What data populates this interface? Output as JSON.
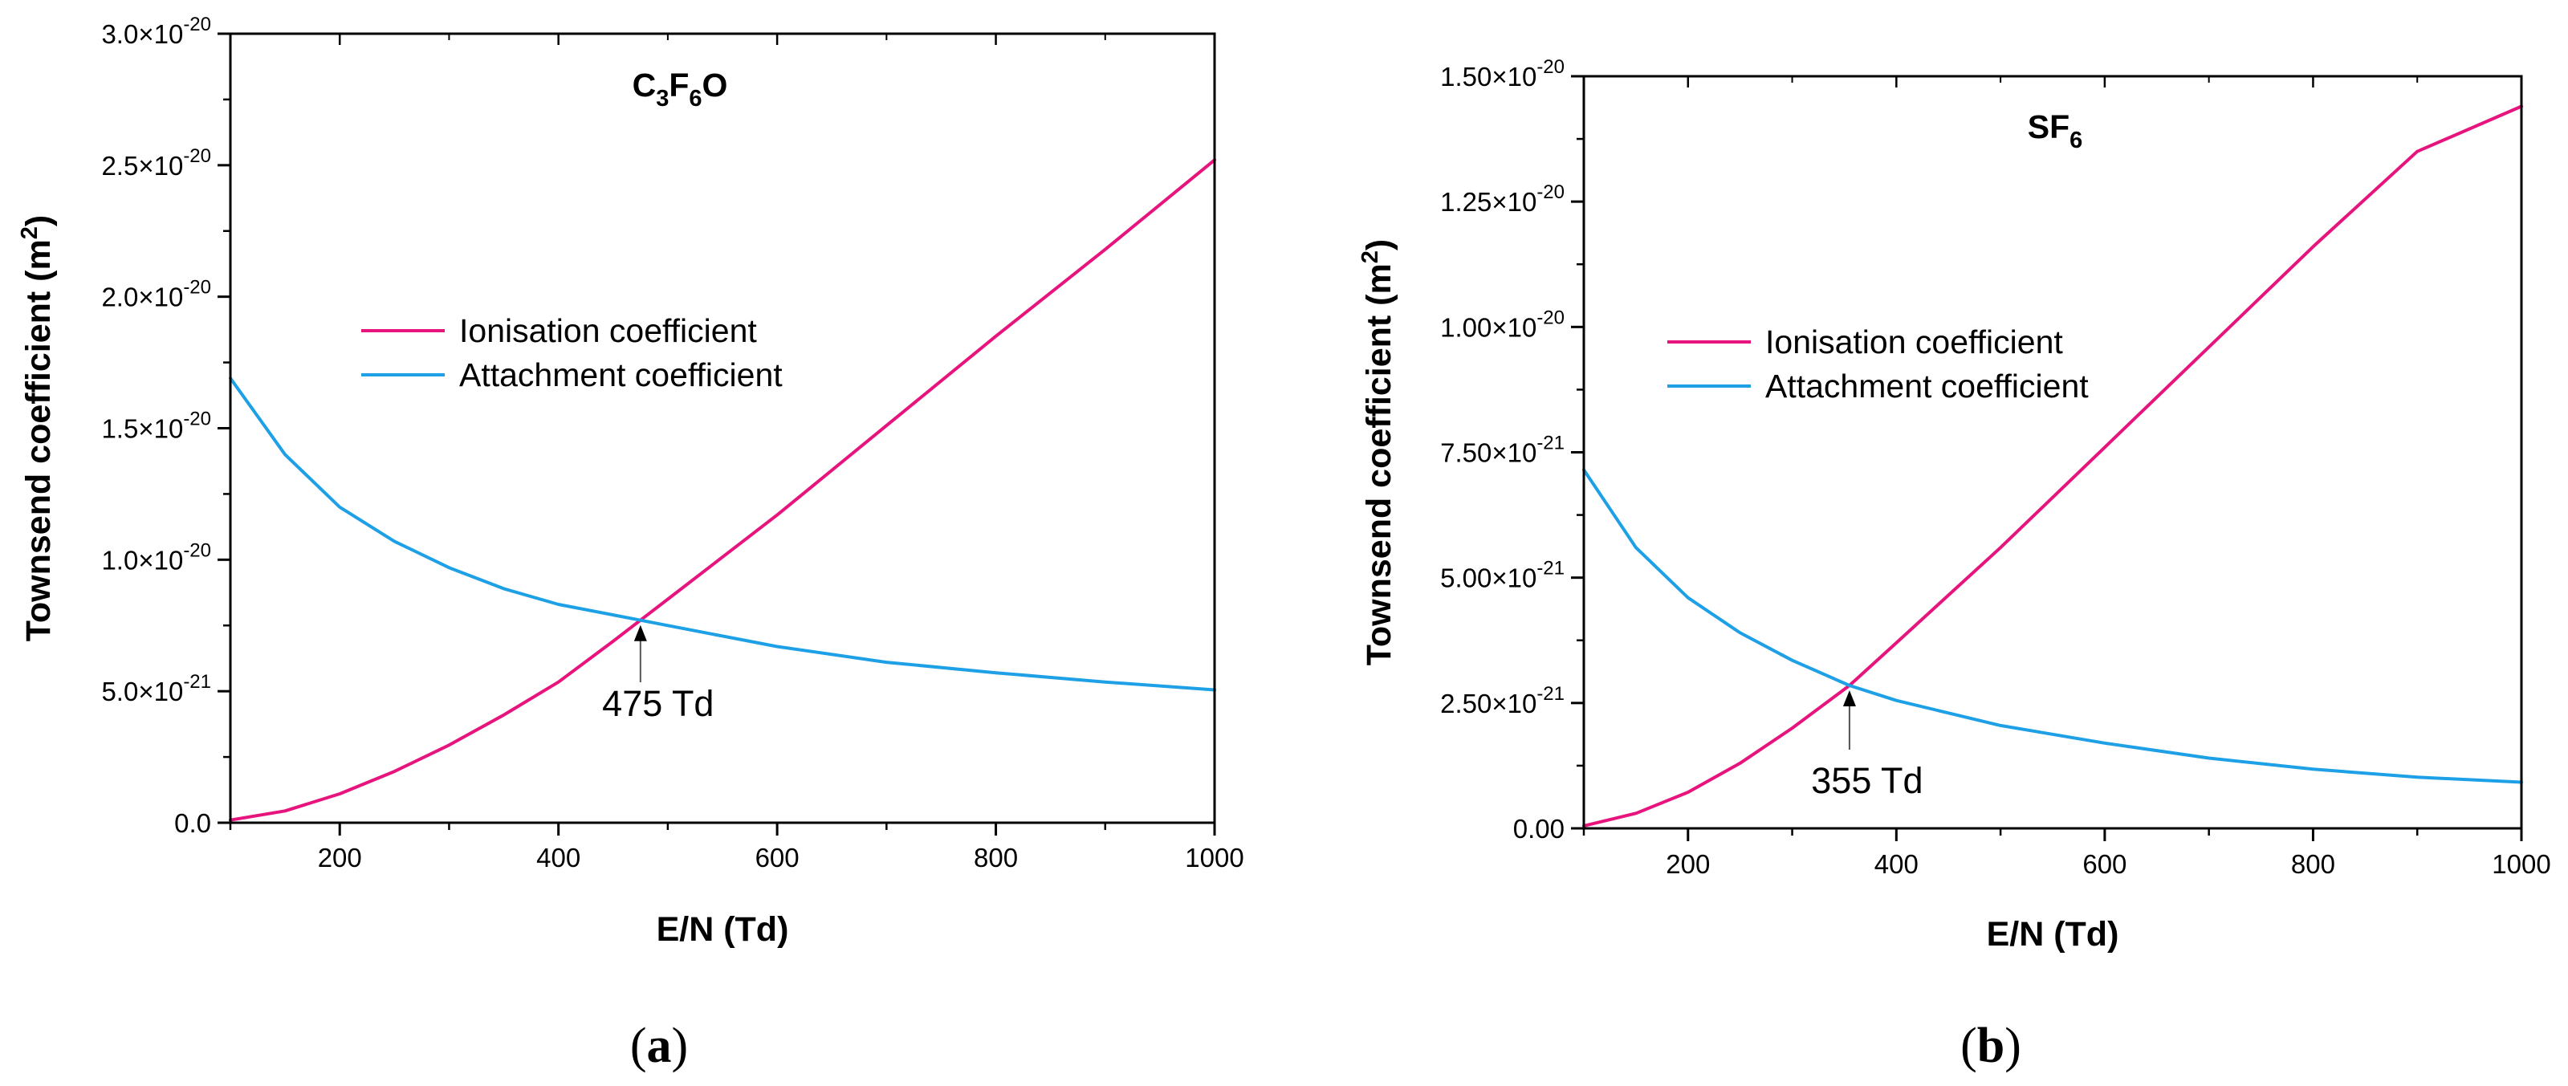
{
  "chart_data": [
    {
      "type": "line",
      "title": "C3F6O",
      "title_parts": {
        "base": "C",
        "sub1": "3",
        "mid": "F",
        "sub2": "6",
        "tail": "O"
      },
      "xlabel": "E/N (Td)",
      "ylabel": "Townsend coefficient (m",
      "ylabel_sup": "2",
      "ylabel_close": ")",
      "xlim": [
        100,
        1000
      ],
      "ylim": [
        0,
        3e-20
      ],
      "xticks": [
        200,
        400,
        600,
        800,
        1000
      ],
      "xtick_labels": [
        "200",
        "400",
        "600",
        "800",
        "1000"
      ],
      "yticks": [
        0,
        5e-21,
        1e-20,
        1.5e-20,
        2e-20,
        2.5e-20,
        3e-20
      ],
      "ytick_labels": [
        {
          "mant": "0.0",
          "exp": ""
        },
        {
          "mant": "5.0×10",
          "exp": "-21"
        },
        {
          "mant": "1.0×10",
          "exp": "-20"
        },
        {
          "mant": "1.5×10",
          "exp": "-20"
        },
        {
          "mant": "2.0×10",
          "exp": "-20"
        },
        {
          "mant": "2.5×10",
          "exp": "-20"
        },
        {
          "mant": "3.0×10",
          "exp": "-20"
        }
      ],
      "series": [
        {
          "name": "Ionisation coefficient",
          "color": "#e8147d",
          "x": [
            100,
            150,
            200,
            250,
            300,
            350,
            400,
            450,
            475,
            500,
            600,
            700,
            800,
            900,
            1000
          ],
          "y": [
            1e-22,
            4.5e-22,
            1.1e-21,
            1.95e-21,
            2.95e-21,
            4.1e-21,
            5.35e-21,
            6.9e-21,
            7.7e-21,
            8.5e-21,
            1.17e-20,
            1.51e-20,
            1.85e-20,
            2.18e-20,
            2.52e-20
          ]
        },
        {
          "name": "Attachment coefficient",
          "color": "#1ea0e6",
          "x": [
            100,
            150,
            200,
            250,
            300,
            350,
            400,
            450,
            475,
            500,
            600,
            700,
            800,
            900,
            1000
          ],
          "y": [
            1.69e-20,
            1.4e-20,
            1.2e-20,
            1.07e-20,
            9.7e-21,
            8.9e-21,
            8.3e-21,
            7.9e-21,
            7.7e-21,
            7.5e-21,
            6.7e-21,
            6.1e-21,
            5.7e-21,
            5.35e-21,
            5.05e-21
          ]
        }
      ],
      "legend": "upper-left-center",
      "annotation": {
        "text": "475 Td",
        "x": 475,
        "y": 7.7e-21
      },
      "panel_label": "(a)"
    },
    {
      "type": "line",
      "title": "SF6",
      "title_parts": {
        "base": "SF",
        "sub1": "6",
        "mid": "",
        "sub2": "",
        "tail": ""
      },
      "xlabel": "E/N (Td)",
      "ylabel": "Townsend coefficient (m",
      "ylabel_sup": "2",
      "ylabel_close": ")",
      "xlim": [
        100,
        1000
      ],
      "ylim": [
        0,
        1.5e-20
      ],
      "xticks": [
        200,
        400,
        600,
        800,
        1000
      ],
      "xtick_labels": [
        "200",
        "400",
        "600",
        "800",
        "1000"
      ],
      "yticks": [
        0,
        2.5e-21,
        5e-21,
        7.5e-21,
        1e-20,
        1.25e-20,
        1.5e-20
      ],
      "ytick_labels": [
        {
          "mant": "0.00",
          "exp": ""
        },
        {
          "mant": "2.50×10",
          "exp": "-21"
        },
        {
          "mant": "5.00×10",
          "exp": "-21"
        },
        {
          "mant": "7.50×10",
          "exp": "-21"
        },
        {
          "mant": "1.00×10",
          "exp": "-20"
        },
        {
          "mant": "1.25×10",
          "exp": "-20"
        },
        {
          "mant": "1.50×10",
          "exp": "-20"
        }
      ],
      "series": [
        {
          "name": "Ionisation coefficient",
          "color": "#e8147d",
          "x": [
            100,
            150,
            200,
            250,
            300,
            355,
            400,
            450,
            500,
            600,
            700,
            800,
            900,
            1000
          ],
          "y": [
            5e-23,
            3e-22,
            7.2e-22,
            1.3e-21,
            2e-21,
            2.85e-21,
            3.7e-21,
            4.65e-21,
            5.6e-21,
            7.6e-21,
            9.6e-21,
            1.16e-20,
            1.35e-20,
            1.44e-20
          ]
        },
        {
          "name": "Attachment coefficient",
          "color": "#1ea0e6",
          "x": [
            100,
            150,
            200,
            250,
            300,
            355,
            400,
            450,
            500,
            600,
            700,
            800,
            900,
            1000
          ],
          "y": [
            7.15e-21,
            5.6e-21,
            4.6e-21,
            3.9e-21,
            3.35e-21,
            2.85e-21,
            2.55e-21,
            2.3e-21,
            2.05e-21,
            1.7e-21,
            1.4e-21,
            1.18e-21,
            1.02e-21,
            9.2e-22
          ]
        }
      ],
      "legend": "upper-left-center",
      "annotation": {
        "text": "355 Td",
        "x": 355,
        "y": 2.85e-21
      },
      "panel_label": "(b)"
    }
  ]
}
